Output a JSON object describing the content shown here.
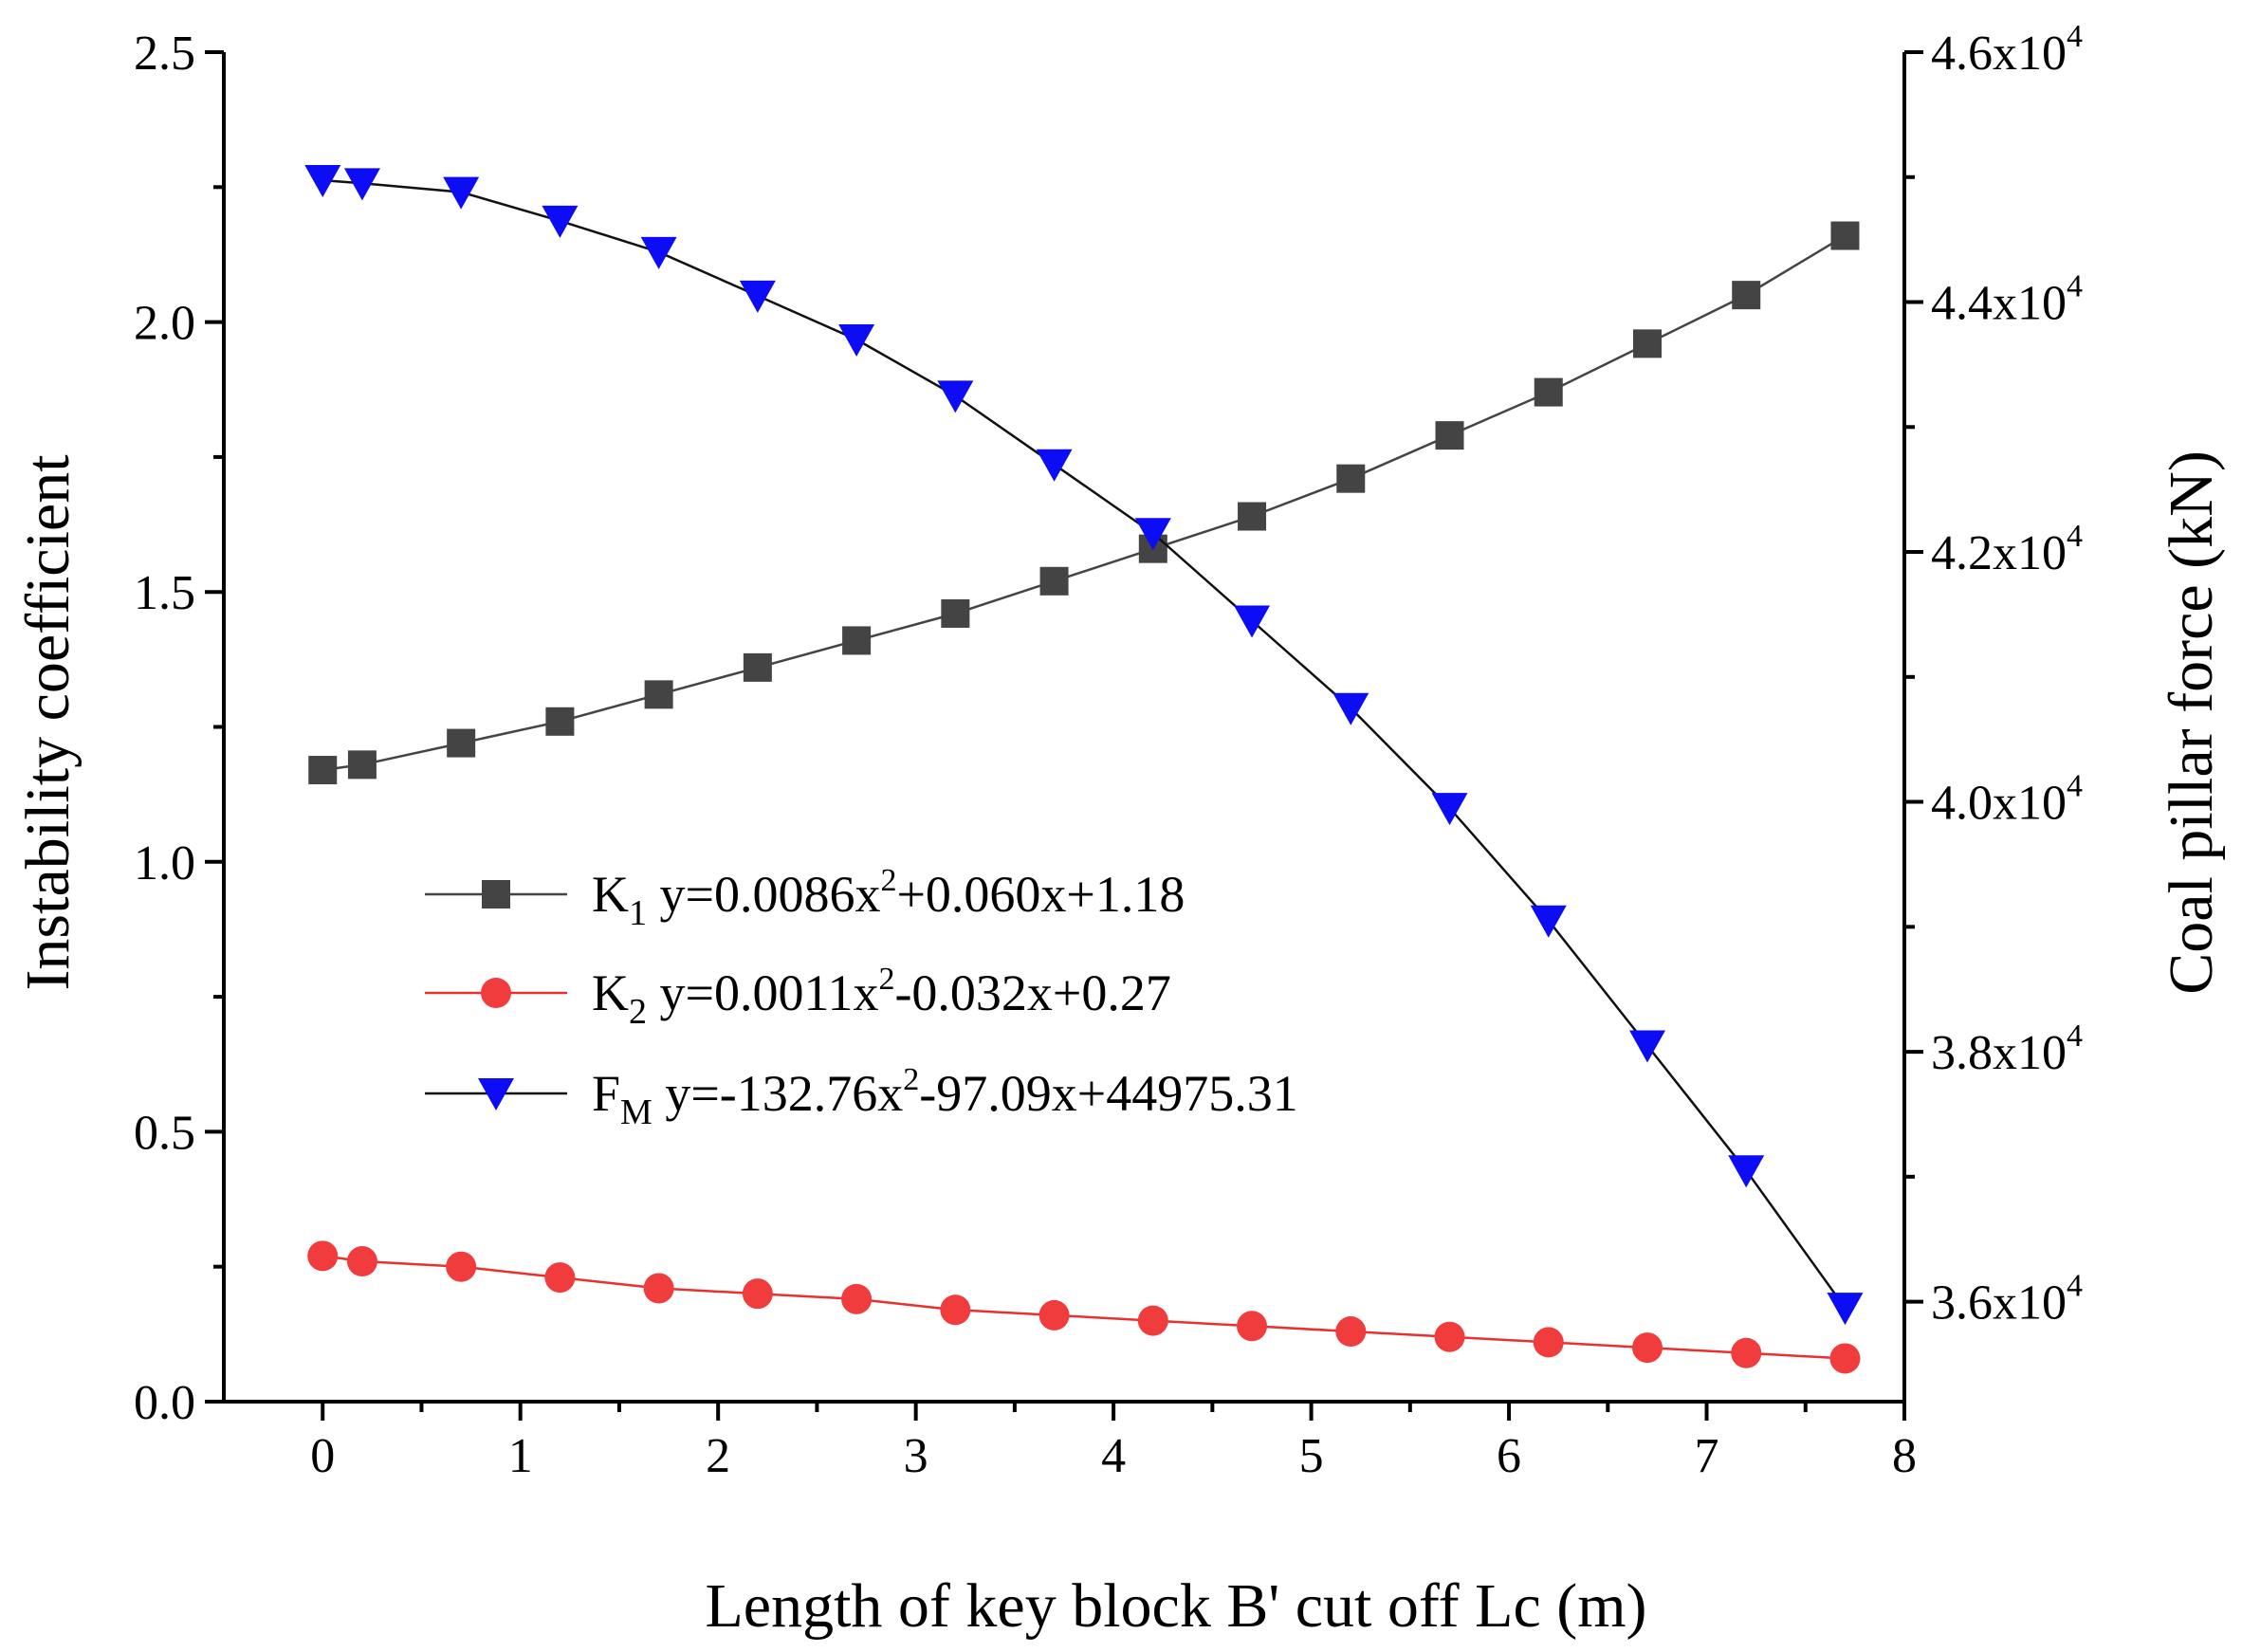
{
  "chart_data": {
    "type": "line",
    "title": "",
    "xlabel": "Length of key block B' cut off Lc (m)",
    "ylabel_left": "Instability coefficient",
    "ylabel_right": "Coal pillar force (kN)",
    "xlim": [
      -0.5,
      8
    ],
    "ylim_left": [
      0,
      2.5
    ],
    "ylim_right": [
      35200,
      46000
    ],
    "x_ticks": [
      0,
      1,
      2,
      3,
      4,
      5,
      6,
      7,
      8
    ],
    "x_tick_labels": [
      "0",
      "1",
      "2",
      "3",
      "4",
      "5",
      "6",
      "7",
      "8"
    ],
    "y_left_ticks": [
      0,
      0.5,
      1.0,
      1.5,
      2.0,
      2.5
    ],
    "y_left_tick_labels": [
      "0.0",
      "0.5",
      "1.0",
      "1.5",
      "2.0",
      "2.5"
    ],
    "y_right_ticks": [
      36000,
      38000,
      40000,
      42000,
      44000,
      46000
    ],
    "y_right_tick_labels": [
      {
        "mantissa": "3.6x10",
        "exp": "4"
      },
      {
        "mantissa": "3.8x10",
        "exp": "4"
      },
      {
        "mantissa": "4.0x10",
        "exp": "4"
      },
      {
        "mantissa": "4.2x10",
        "exp": "4"
      },
      {
        "mantissa": "4.4x10",
        "exp": "4"
      },
      {
        "mantissa": "4.6x10",
        "exp": "4"
      }
    ],
    "x": [
      0,
      0.2,
      0.7,
      1.2,
      1.7,
      2.2,
      2.7,
      3.2,
      3.7,
      4.2,
      4.7,
      5.2,
      5.7,
      6.2,
      6.7,
      7.2,
      7.7
    ],
    "series": [
      {
        "name": "K1",
        "axis": "left",
        "marker": "square",
        "line_color": "#444444",
        "marker_color": "#444444",
        "values": [
          1.17,
          1.18,
          1.22,
          1.26,
          1.31,
          1.36,
          1.41,
          1.46,
          1.52,
          1.58,
          1.64,
          1.71,
          1.79,
          1.87,
          1.96,
          2.05,
          2.16
        ]
      },
      {
        "name": "K2",
        "axis": "left",
        "marker": "circle",
        "line_color": "#e8312e",
        "marker_color": "#f03c3c",
        "values": [
          0.27,
          0.26,
          0.25,
          0.23,
          0.21,
          0.2,
          0.19,
          0.17,
          0.16,
          0.15,
          0.14,
          0.13,
          0.12,
          0.11,
          0.1,
          0.09,
          0.08
        ]
      },
      {
        "name": "FM",
        "axis": "right",
        "marker": "triangle-down",
        "line_color": "#111111",
        "marker_color": "#0d0df5",
        "values": [
          44975,
          44950,
          44880,
          44650,
          44400,
          44050,
          43700,
          43250,
          42700,
          42150,
          41450,
          40750,
          39950,
          39050,
          38050,
          37050,
          35950
        ]
      }
    ],
    "legend": {
      "placement": "center-left",
      "entries": [
        {
          "base": "K",
          "sub": "1",
          "eq_pre": "y=0.0086x",
          "sup": "2",
          "eq_post": "+0.060x+1.18"
        },
        {
          "base": "K",
          "sub": "2",
          "eq_pre": "y=0.0011x",
          "sup": "2",
          "eq_post": "-0.032x+0.27"
        },
        {
          "base": "F",
          "sub": "M",
          "eq_pre": "y=-132.76x",
          "sup": "2",
          "eq_post": "-97.09x+44975.31"
        }
      ]
    }
  }
}
